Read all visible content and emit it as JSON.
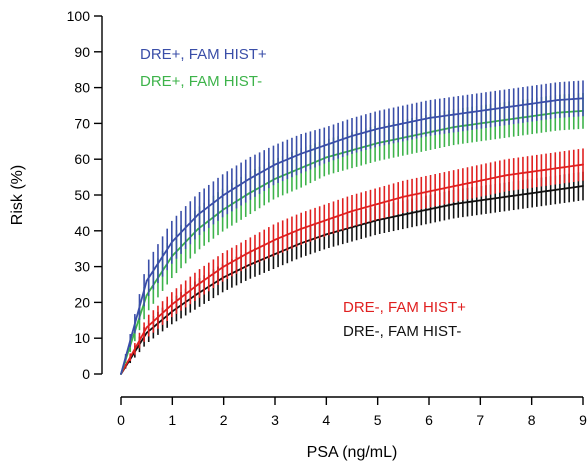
{
  "chart_data": {
    "type": "line",
    "title": "",
    "xlabel": "PSA (ng/mL)",
    "ylabel": "Risk (%)",
    "xlim": [
      0,
      9
    ],
    "ylim": [
      0,
      100
    ],
    "xticks": [
      "0",
      "1",
      "2",
      "3",
      "4",
      "5",
      "6",
      "7",
      "8",
      "9"
    ],
    "yticks": [
      "0",
      "10",
      "20",
      "30",
      "40",
      "50",
      "60",
      "70",
      "80",
      "90",
      "100"
    ],
    "grid": false,
    "legend_placement": "in-plot labels (top-left and lower-right)",
    "error_bars": true,
    "series": [
      {
        "name": "DRE+, FAM HIST+",
        "color": "#3a4ea8",
        "x": [
          0,
          0.5,
          1,
          1.5,
          2,
          2.5,
          3,
          3.5,
          4,
          4.5,
          5,
          5.5,
          6,
          6.5,
          7,
          7.5,
          8,
          8.5,
          9
        ],
        "y": [
          0,
          26,
          37,
          44.5,
          50,
          54.5,
          58.5,
          61.5,
          64,
          66.5,
          68.5,
          70,
          71.5,
          72.5,
          73.5,
          74.5,
          75.5,
          76.5,
          77
        ],
        "err": [
          0,
          5,
          6,
          6,
          6,
          6,
          5.5,
          5.5,
          5,
          5,
          5,
          5,
          5,
          5,
          5,
          5,
          5,
          5,
          5
        ]
      },
      {
        "name": "DRE+, FAM HIST-",
        "color": "#3db34a",
        "x": [
          0,
          0.5,
          1,
          1.5,
          2,
          2.5,
          3,
          3.5,
          4,
          4.5,
          5,
          5.5,
          6,
          6.5,
          7,
          7.5,
          8,
          8.5,
          9
        ],
        "y": [
          0,
          22,
          33,
          40.5,
          46,
          50.5,
          54.5,
          57.5,
          60.5,
          62.5,
          64.5,
          66,
          67.5,
          69,
          70,
          71,
          72,
          73,
          73.5
        ],
        "err": [
          0,
          5,
          6,
          6,
          6,
          6,
          5.5,
          5.5,
          5,
          5,
          5,
          5,
          5,
          5,
          5,
          5,
          5,
          5,
          5
        ]
      },
      {
        "name": "DRE-, FAM HIST+",
        "color": "#e02020",
        "x": [
          0,
          0.5,
          1,
          1.5,
          2,
          2.5,
          3,
          3.5,
          4,
          4.5,
          5,
          5.5,
          6,
          6.5,
          7,
          7.5,
          8,
          8.5,
          9
        ],
        "y": [
          0,
          13,
          19.5,
          25,
          30,
          34,
          37.5,
          40.5,
          43,
          45.5,
          47.5,
          49.5,
          51,
          52.5,
          54,
          55.5,
          56.5,
          57.5,
          58.5
        ],
        "err": [
          0,
          3,
          3.5,
          4,
          4,
          4,
          4.5,
          4.5,
          4.5,
          4.5,
          4.5,
          4.5,
          4.5,
          4.5,
          4.5,
          4.5,
          4.5,
          4.5,
          4.5
        ]
      },
      {
        "name": "DRE-, FAM HIST-",
        "color": "#111111",
        "x": [
          0,
          0.5,
          1,
          1.5,
          2,
          2.5,
          3,
          3.5,
          4,
          4.5,
          5,
          5.5,
          6,
          6.5,
          7,
          7.5,
          8,
          8.5,
          9
        ],
        "y": [
          0,
          11.5,
          17.5,
          22.5,
          27,
          30.5,
          33.5,
          36.5,
          39,
          41,
          43,
          44.5,
          46,
          47.5,
          48.5,
          49.5,
          50.5,
          51.5,
          52.5
        ],
        "err": [
          0,
          3,
          3.5,
          4,
          4,
          4,
          4,
          4,
          4,
          4,
          4,
          4,
          4,
          4,
          4,
          4,
          4,
          4,
          4
        ]
      }
    ],
    "annotations": [
      {
        "text": "DRE+, FAM HIST+",
        "color": "#3a4ea8",
        "position": "top-left"
      },
      {
        "text": "DRE+, FAM HIST-",
        "color": "#3db34a",
        "position": "top-left"
      },
      {
        "text": "DRE-, FAM HIST+",
        "color": "#e02020",
        "position": "lower-right"
      },
      {
        "text": "DRE-, FAM HIST-",
        "color": "#111111",
        "position": "lower-right"
      }
    ]
  }
}
